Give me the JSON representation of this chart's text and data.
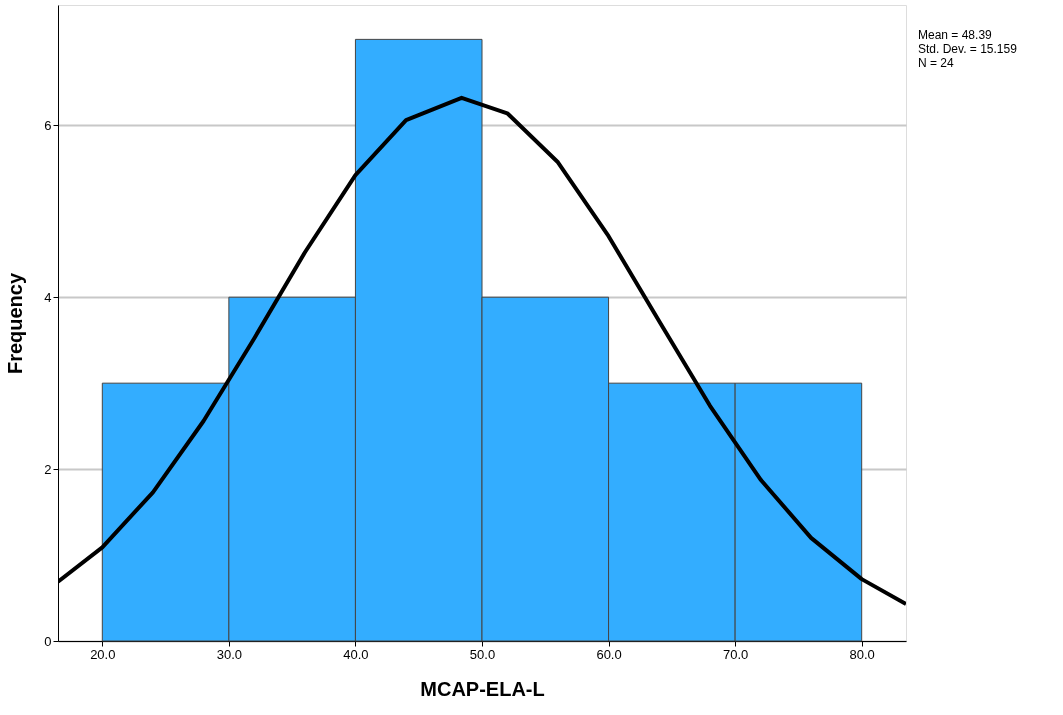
{
  "chart_data": {
    "type": "histogram",
    "xlabel": "MCAP-ELA-L",
    "ylabel": "Frequency",
    "bins": [
      20,
      30,
      40,
      50,
      60,
      70,
      80
    ],
    "values": [
      3,
      4,
      7,
      4,
      3,
      3
    ],
    "color": "#33adff",
    "series": [
      {
        "type": "line",
        "color": "#000000",
        "x": [
          16.5,
          20,
          24,
          28,
          32,
          36,
          40,
          44,
          48.39,
          52,
          56,
          60,
          64,
          68,
          72,
          76,
          80,
          83.5
        ],
        "values": [
          0.69,
          1.09,
          1.73,
          2.56,
          3.52,
          4.52,
          5.42,
          6.06,
          6.32,
          6.14,
          5.57,
          4.71,
          3.72,
          2.74,
          1.88,
          1.2,
          0.72,
          0.43
        ]
      }
    ],
    "xlim": [
      16.5,
      83.5
    ],
    "xticks": [
      {
        "value": 20,
        "label": "20.0"
      },
      {
        "value": 30,
        "label": "30.0"
      },
      {
        "value": 40,
        "label": "40.0"
      },
      {
        "value": 50,
        "label": "50.0"
      },
      {
        "value": 60,
        "label": "60.0"
      },
      {
        "value": 70,
        "label": "70.0"
      },
      {
        "value": 80,
        "label": "80.0"
      }
    ],
    "ylim": [
      0,
      7.4
    ],
    "yticks": [
      0,
      2,
      4,
      6
    ],
    "grid": "y",
    "annotations": [
      "Mean = 48.39",
      "Std. Dev. = 15.159",
      "N = 24"
    ]
  }
}
